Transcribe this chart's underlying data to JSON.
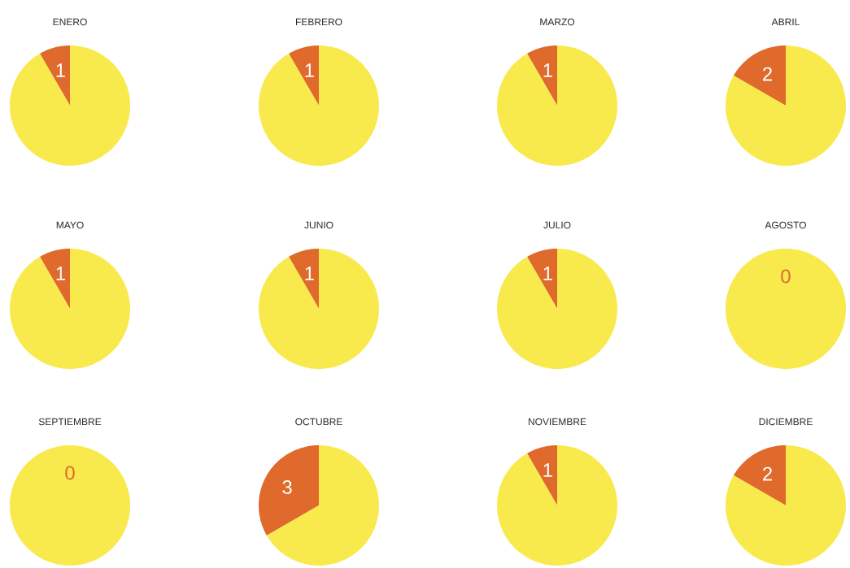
{
  "chart_data": [
    {
      "type": "pie",
      "title": "ENERO",
      "categories": [
        null,
        null
      ],
      "values": [
        1,
        11
      ],
      "colors": [
        "#e0692c",
        "#f8ea4c"
      ],
      "value_labels": [
        "1",
        null
      ]
    },
    {
      "type": "pie",
      "title": "FEBRERO",
      "categories": [
        null,
        null
      ],
      "values": [
        1,
        11
      ],
      "colors": [
        "#e0692c",
        "#f8ea4c"
      ],
      "value_labels": [
        "1",
        null
      ]
    },
    {
      "type": "pie",
      "title": "MARZO",
      "categories": [
        null,
        null
      ],
      "values": [
        1,
        11
      ],
      "colors": [
        "#e0692c",
        "#f8ea4c"
      ],
      "value_labels": [
        "1",
        null
      ]
    },
    {
      "type": "pie",
      "title": "ABRIL",
      "categories": [
        null,
        null
      ],
      "values": [
        2,
        10
      ],
      "colors": [
        "#e0692c",
        "#f8ea4c"
      ],
      "value_labels": [
        "2",
        null
      ]
    },
    {
      "type": "pie",
      "title": "MAYO",
      "categories": [
        null,
        null
      ],
      "values": [
        1,
        11
      ],
      "colors": [
        "#e0692c",
        "#f8ea4c"
      ],
      "value_labels": [
        "1",
        null
      ]
    },
    {
      "type": "pie",
      "title": "JUNIO",
      "categories": [
        null,
        null
      ],
      "values": [
        1,
        11
      ],
      "colors": [
        "#e0692c",
        "#f8ea4c"
      ],
      "value_labels": [
        "1",
        null
      ]
    },
    {
      "type": "pie",
      "title": "JULIO",
      "categories": [
        null,
        null
      ],
      "values": [
        1,
        11
      ],
      "colors": [
        "#e0692c",
        "#f8ea4c"
      ],
      "value_labels": [
        "1",
        null
      ]
    },
    {
      "type": "pie",
      "title": "AGOSTO",
      "categories": [
        null,
        null
      ],
      "values": [
        0,
        100
      ],
      "colors": [
        "#e0692c",
        "#f8ea4c"
      ],
      "value_labels": [
        "0",
        null
      ]
    },
    {
      "type": "pie",
      "title": "SEPTIEMBRE",
      "categories": [
        null,
        null
      ],
      "values": [
        0,
        100
      ],
      "colors": [
        "#e0692c",
        "#f8ea4c"
      ],
      "value_labels": [
        "0",
        null
      ]
    },
    {
      "type": "pie",
      "title": "OCTUBRE",
      "categories": [
        null,
        null
      ],
      "values": [
        3,
        6
      ],
      "colors": [
        "#e0692c",
        "#f8ea4c"
      ],
      "value_labels": [
        "3",
        null
      ]
    },
    {
      "type": "pie",
      "title": "NOVIEMBRE",
      "categories": [
        null,
        null
      ],
      "values": [
        1,
        11
      ],
      "colors": [
        "#e0692c",
        "#f8ea4c"
      ],
      "value_labels": [
        "1",
        null
      ]
    },
    {
      "type": "pie",
      "title": "DICIEMBRE",
      "categories": [
        null,
        null
      ],
      "values": [
        2,
        10
      ],
      "colors": [
        "#e0692c",
        "#f8ea4c"
      ],
      "value_labels": [
        "2",
        null
      ]
    }
  ]
}
